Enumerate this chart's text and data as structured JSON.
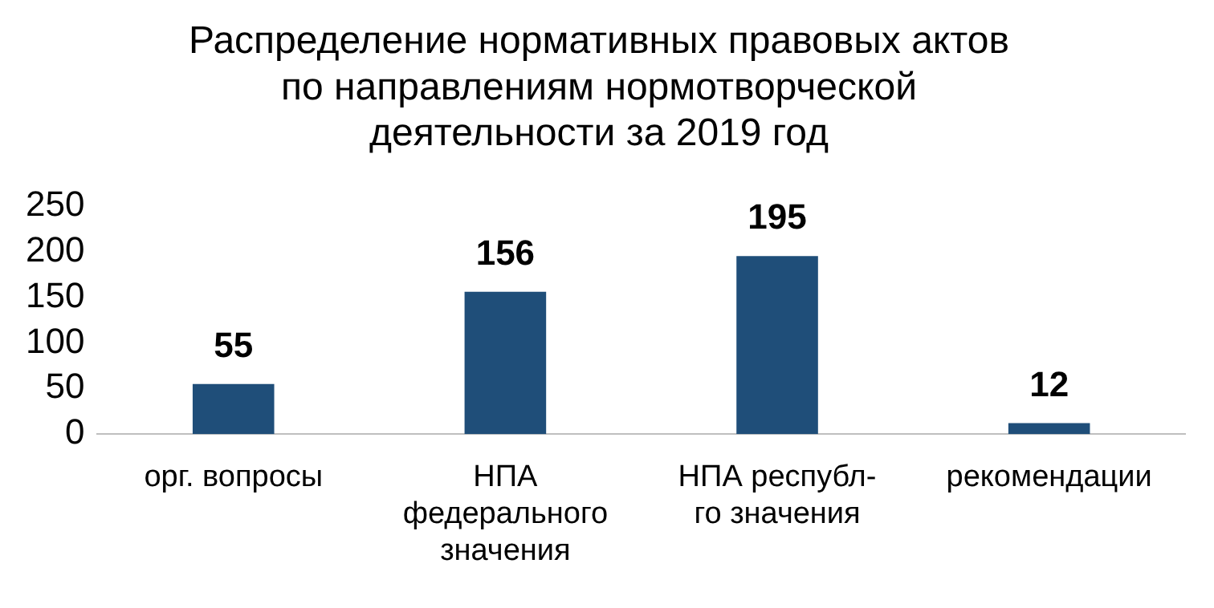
{
  "chart_data": {
    "type": "bar",
    "title": "Распределение нормативных правовых актов\nпо направлениям нормотворческой\nдеятельности за 2019 год",
    "categories": [
      "орг. вопросы",
      "НПА\nфедерального\nзначения",
      "НПА республ-\nго значения",
      "рекомендации"
    ],
    "values": [
      55,
      156,
      195,
      12
    ],
    "color": "#1f4e79",
    "ylim": [
      0,
      250
    ],
    "yticks": [
      0,
      50,
      100,
      150,
      200,
      250
    ],
    "grid": false,
    "data_labels": true
  }
}
